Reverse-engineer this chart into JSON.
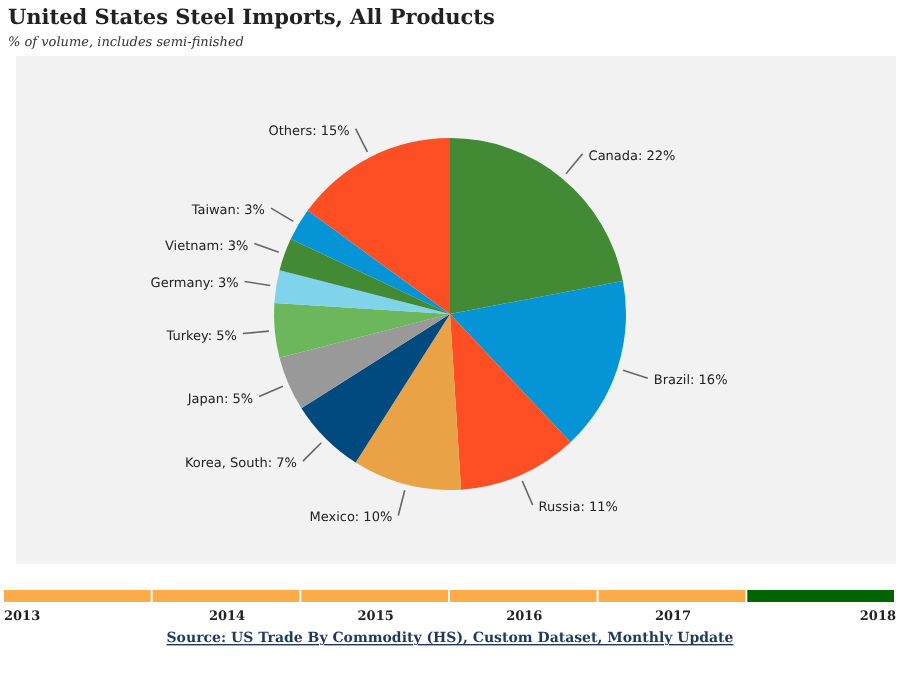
{
  "chart_data": {
    "type": "pie",
    "title": "United States Steel Imports, All Products",
    "subtitle": "% of volume, includes semi-finished",
    "categories": [
      "Canada",
      "Brazil",
      "Russia",
      "Mexico",
      "Korea, South",
      "Japan",
      "Turkey",
      "Germany",
      "Vietnam",
      "Taiwan",
      "Others"
    ],
    "values": [
      22,
      16,
      11,
      10,
      7,
      5,
      5,
      3,
      3,
      3,
      15
    ],
    "value_labels": [
      "22%",
      "16%",
      "11%",
      "10%",
      "7%",
      "5%",
      "5%",
      "3%",
      "3%",
      "3%",
      "15%"
    ],
    "colors": [
      "#428a34",
      "#0595d6",
      "#fd4f23",
      "#eaa247",
      "#014a7f",
      "#999999",
      "#6cb75c",
      "#7fd3eb",
      "#428a34",
      "#0595d6",
      "#fd4f23"
    ],
    "annotations": [
      "2013",
      "2014",
      "2015",
      "2016",
      "2017",
      "2018",
      "Source: US Trade By Commodity (HS), Custom Dataset, Monthly Update"
    ]
  }
}
